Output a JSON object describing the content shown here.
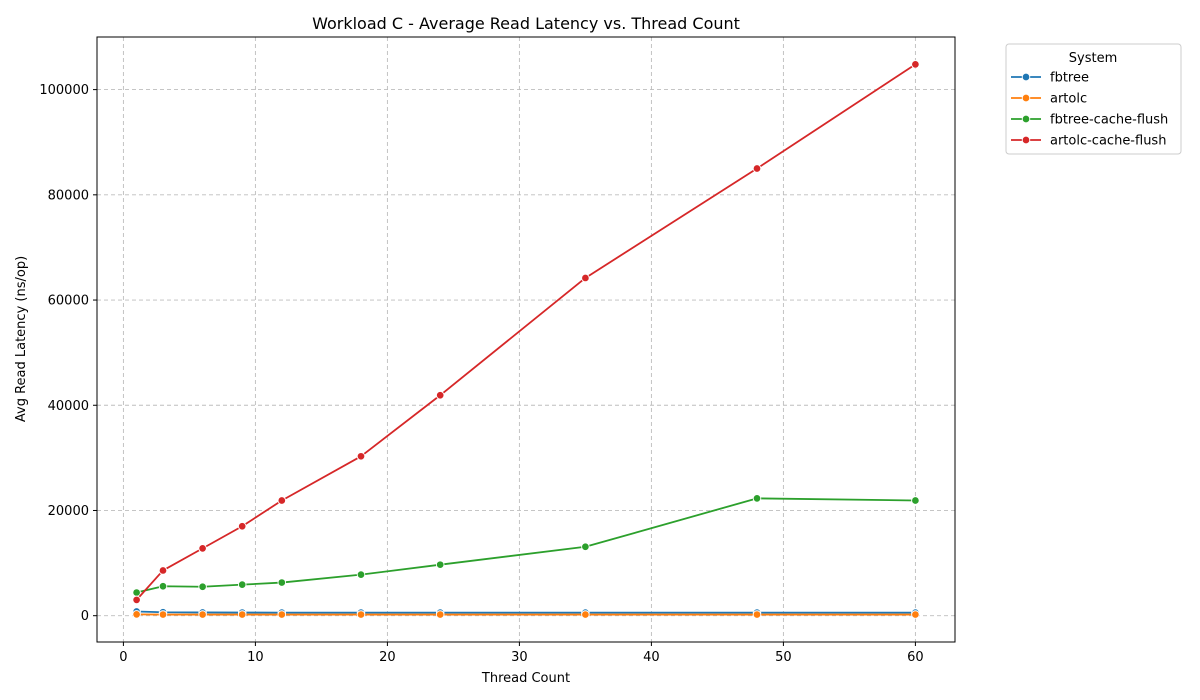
{
  "chart_data": {
    "type": "line",
    "title": "Workload C - Average Read Latency vs. Thread Count",
    "xlabel": "Thread Count",
    "ylabel": "Avg Read Latency (ns/op)",
    "xlim": [
      -2,
      63
    ],
    "ylim": [
      -5000,
      110000
    ],
    "xticks": [
      0,
      10,
      20,
      30,
      40,
      50,
      60
    ],
    "yticks": [
      0,
      20000,
      40000,
      60000,
      80000,
      100000
    ],
    "grid": true,
    "legend": {
      "title": "System",
      "placement": "outside-top-right"
    },
    "x": [
      1,
      3,
      6,
      9,
      12,
      18,
      24,
      35,
      48,
      60
    ],
    "series": [
      {
        "name": "fbtree",
        "color": "#1f77b4",
        "values": [
          800,
          650,
          620,
          600,
          590,
          580,
          580,
          580,
          580,
          580
        ]
      },
      {
        "name": "artolc",
        "color": "#ff7f0e",
        "values": [
          250,
          220,
          220,
          220,
          220,
          220,
          220,
          220,
          220,
          220
        ]
      },
      {
        "name": "fbtree-cache-flush",
        "color": "#2ca02c",
        "values": [
          4400,
          5600,
          5500,
          5900,
          6300,
          7800,
          9700,
          13100,
          22300,
          21900
        ]
      },
      {
        "name": "artolc-cache-flush",
        "color": "#d62728",
        "values": [
          3000,
          8600,
          12800,
          17000,
          21900,
          30300,
          41900,
          64200,
          85000,
          104800
        ]
      }
    ]
  }
}
